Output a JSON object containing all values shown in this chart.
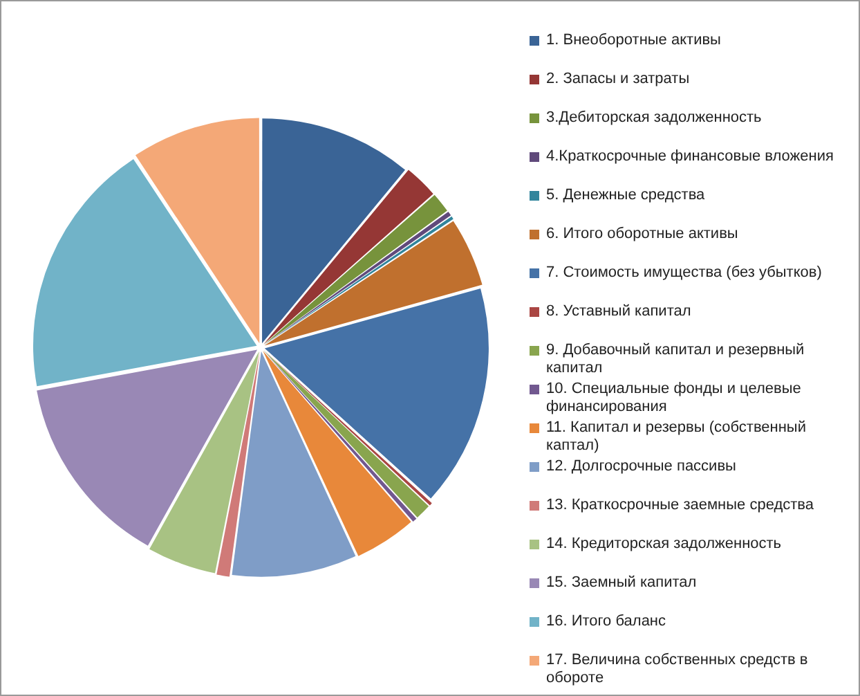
{
  "chart_data": {
    "type": "pie",
    "legend": "right",
    "categories": [
      "1. Внеоборотные активы",
      "2. Запасы и затраты",
      "3.Дебиторская задолженность",
      "4.Краткосрочные финансовые вложения",
      "5. Денежные средства",
      "6. Итого оборотные активы",
      "7. Стоимость имущества (без убытков)",
      "8. Уставный капитал",
      "9. Добавочный капитал и резервный капитал",
      "10. Специальные фонды и целевые финансирования",
      "11. Капитал и резервы (собственный каптал)",
      "12. Долгосрочные пассивы",
      "13. Краткосрочные заемные средства",
      "14. Кредиторская задолженность",
      "15. Заемный капитал",
      "16. Итого баланс",
      "17. Величина собственных средств в обороте"
    ],
    "values": [
      11,
      2.5,
      1.5,
      0.4,
      0.3,
      5,
      16,
      0.3,
      1.2,
      0.4,
      4.5,
      9,
      1,
      5,
      14,
      18.6,
      9.3
    ],
    "colors": [
      "#3a6496",
      "#953735",
      "#77933c",
      "#604a7b",
      "#31859c",
      "#c0702e",
      "#4572a7",
      "#aa4643",
      "#89a54e",
      "#71588f",
      "#e8883a",
      "#7f9dc7",
      "#d07a78",
      "#a8c283",
      "#9988b5",
      "#71b3c8",
      "#f4a877"
    ]
  }
}
